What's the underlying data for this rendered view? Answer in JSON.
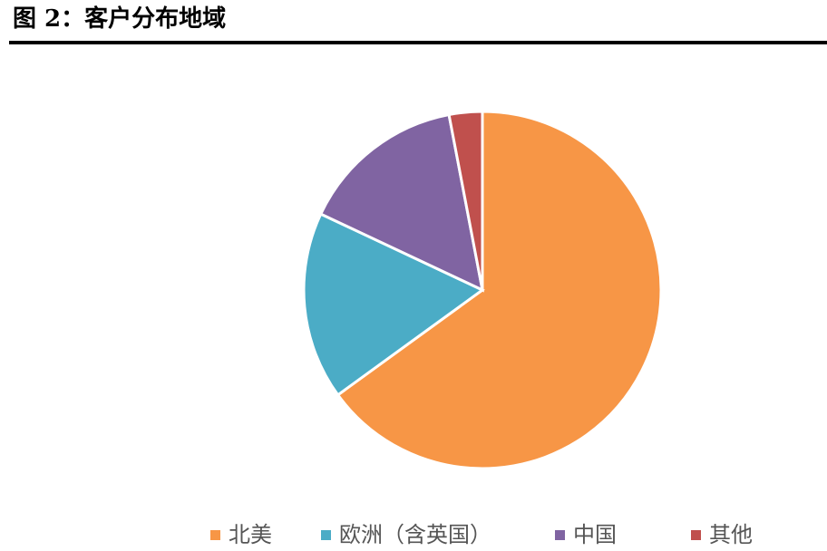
{
  "chart_data": {
    "type": "pie",
    "title": "图 2：客户分布地域",
    "categories": [
      "北美",
      "欧洲（含英国）",
      "中国",
      "其他"
    ],
    "values": [
      65,
      17,
      15,
      3
    ],
    "colors": [
      "#f79646",
      "#4bacc6",
      "#8064a2",
      "#c0504d"
    ]
  }
}
